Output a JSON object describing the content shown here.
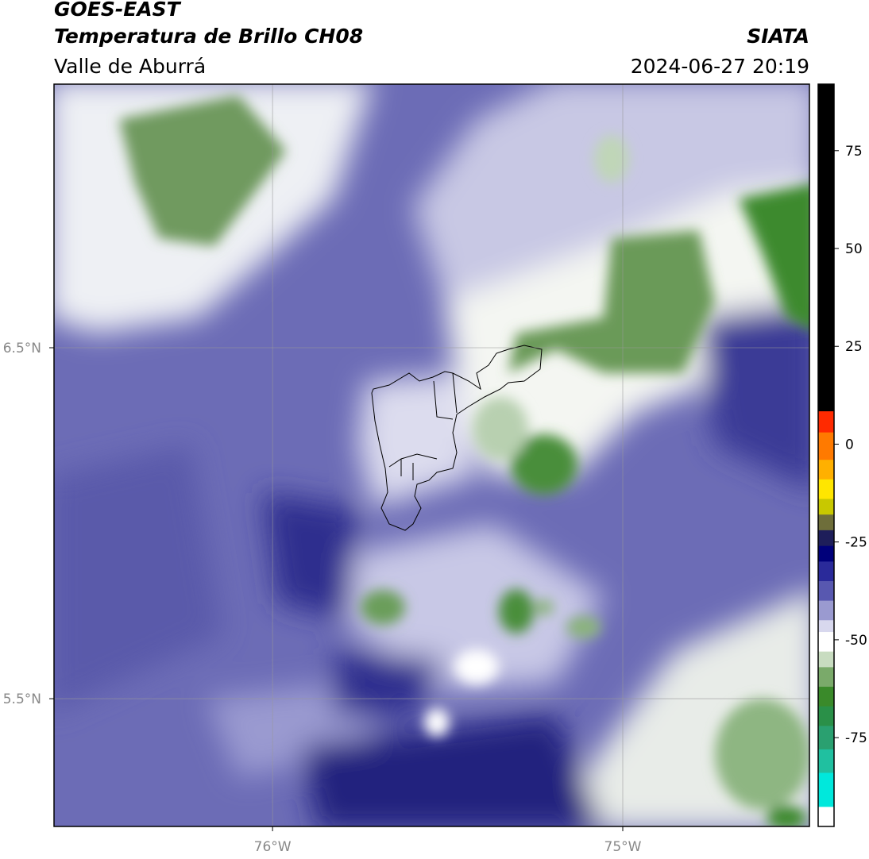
{
  "header": {
    "satellite": "GOES-EAST",
    "product": "Temperatura de Brillo CH08",
    "region": "Valle de Aburrá",
    "source": "SIATA",
    "datetime": "2024-06-27 20:19"
  },
  "map": {
    "xlim": [
      -76.624,
      -74.467
    ],
    "ylim": [
      5.136,
      7.251
    ],
    "xticks": [
      {
        "value": -76,
        "label": "76°W"
      },
      {
        "value": -75,
        "label": "75°W"
      }
    ],
    "yticks": [
      {
        "value": 6.5,
        "label": "6.5°N"
      },
      {
        "value": 5.5,
        "label": "5.5°N"
      }
    ],
    "grid": true
  },
  "colorbar": {
    "lim": [
      92,
      -97.7
    ],
    "ticks": [
      75,
      50,
      25,
      0,
      -25,
      -50,
      -75
    ],
    "segments": [
      [
        92,
        8.4,
        "#000000"
      ],
      [
        8.4,
        3,
        "#ff2a00"
      ],
      [
        3,
        -4,
        "#ff7a00"
      ],
      [
        -4,
        -9,
        "#ffb000"
      ],
      [
        -9,
        -14,
        "#ffe600"
      ],
      [
        -14,
        -18,
        "#c8c800"
      ],
      [
        -18,
        -22,
        "#6e6e3a"
      ],
      [
        -22,
        -26,
        "#1e1e5a"
      ],
      [
        -26,
        -30,
        "#00007a"
      ],
      [
        -30,
        -35,
        "#2a2a9a"
      ],
      [
        -35,
        -40,
        "#5858b0"
      ],
      [
        -40,
        -45,
        "#9a9ad0"
      ],
      [
        -45,
        -48,
        "#d8d8ee"
      ],
      [
        -48,
        -53,
        "#ffffff"
      ],
      [
        -53,
        -57,
        "#c8dcc0"
      ],
      [
        -57,
        -62,
        "#7aaa6a"
      ],
      [
        -62,
        -67,
        "#3a8a2a"
      ],
      [
        -67,
        -72,
        "#2a9048"
      ],
      [
        -72,
        -78,
        "#2aa070"
      ],
      [
        -78,
        -84,
        "#20c0a0"
      ],
      [
        -84,
        -92.7,
        "#00e8dc"
      ],
      [
        -92.7,
        -97.7,
        "#ffffff"
      ]
    ]
  }
}
